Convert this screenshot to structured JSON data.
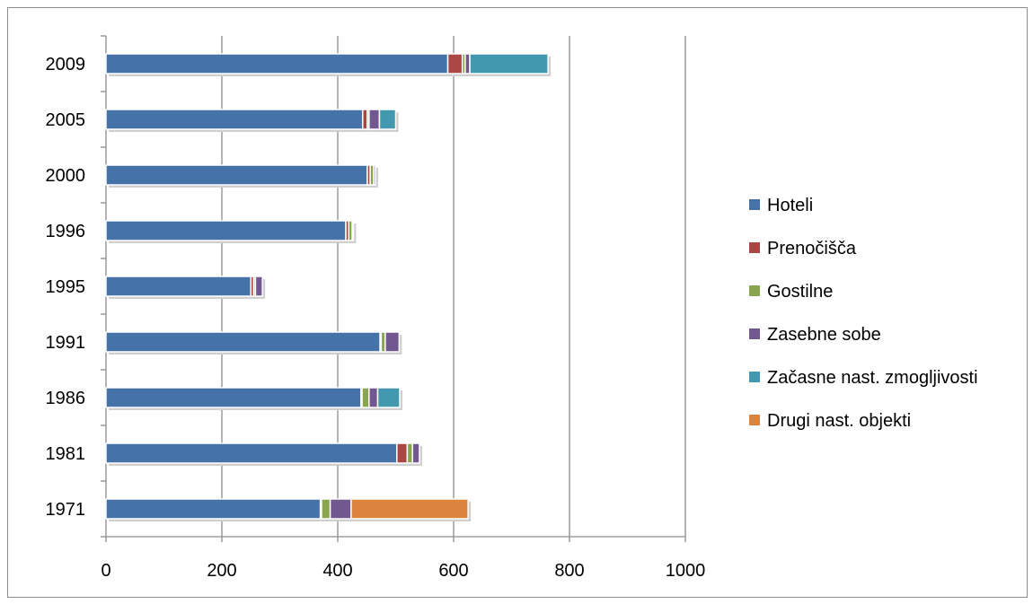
{
  "chart_data": {
    "type": "bar",
    "orientation": "horizontal",
    "stacked": true,
    "categories": [
      "2009",
      "2005",
      "2000",
      "1996",
      "1995",
      "1991",
      "1986",
      "1981",
      "1971"
    ],
    "series": [
      {
        "name": "Hoteli",
        "color": "#4572A7",
        "values": [
          590,
          443,
          451,
          414,
          250,
          473,
          440,
          502,
          370
        ]
      },
      {
        "name": "Prenočišča",
        "color": "#AA4643",
        "values": [
          25,
          8,
          5,
          5,
          5,
          2,
          2,
          18,
          2
        ]
      },
      {
        "name": "Gostilne",
        "color": "#89A54E",
        "values": [
          5,
          3,
          6,
          6,
          3,
          7,
          12,
          9,
          15
        ]
      },
      {
        "name": "Zasebne sobe",
        "color": "#71588F",
        "values": [
          8,
          18,
          3,
          2,
          12,
          24,
          15,
          12,
          36
        ]
      },
      {
        "name": "Začasne nast. zmogljivosti",
        "color": "#4198AF",
        "values": [
          135,
          28,
          0,
          0,
          0,
          0,
          38,
          0,
          0
        ]
      },
      {
        "name": "Drugi nast. objekti",
        "color": "#DB843D",
        "values": [
          0,
          0,
          0,
          0,
          0,
          0,
          0,
          0,
          202
        ]
      }
    ],
    "xlim": [
      0,
      1000
    ],
    "xticks": [
      "0",
      "200",
      "400",
      "600",
      "800",
      "1000"
    ],
    "grid": true,
    "legend_position": "right"
  }
}
